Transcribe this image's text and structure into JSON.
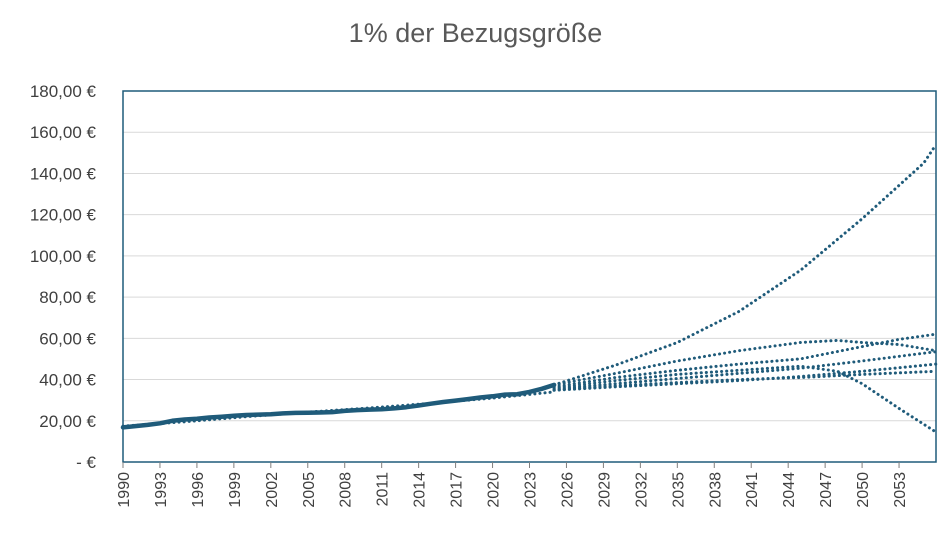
{
  "chart_data": {
    "type": "line",
    "title": "1% der Bezugsgröße",
    "xlabel": "",
    "ylabel": "",
    "ylim": [
      0,
      180
    ],
    "xlim": [
      1990,
      2056
    ],
    "y_ticks": [
      0,
      20,
      40,
      60,
      80,
      100,
      120,
      140,
      160,
      180
    ],
    "y_tick_labels": [
      "-  €",
      "20,00 €",
      "40,00 €",
      "60,00 €",
      "80,00 €",
      "100,00 €",
      "120,00 €",
      "140,00 €",
      "160,00 €",
      "180,00 €"
    ],
    "x_tick_labels": [
      "1990",
      "1993",
      "1996",
      "1999",
      "2002",
      "2005",
      "2008",
      "2011",
      "2014",
      "2017",
      "2020",
      "2023",
      "2026",
      "2029",
      "2032",
      "2035",
      "2038",
      "2041",
      "2044",
      "2047",
      "2050",
      "2053"
    ],
    "grid": true,
    "legend": "none",
    "colors": {
      "series": "#1f5b7a",
      "grid": "#d9d9d9",
      "frame": "#1f5b7a"
    },
    "series": [
      {
        "style": "solid",
        "x": [
          1990,
          1991,
          1992,
          1993,
          1994,
          1995,
          1996,
          1997,
          1998,
          1999,
          2000,
          2001,
          2002,
          2003,
          2004,
          2005,
          2006,
          2007,
          2008,
          2009,
          2010,
          2011,
          2012,
          2013,
          2014,
          2015,
          2016,
          2017,
          2018,
          2019,
          2020,
          2021,
          2022,
          2023,
          2024,
          2025
        ],
        "y": [
          16.8,
          17.4,
          18.0,
          18.8,
          20.0,
          20.6,
          21.0,
          21.6,
          22.0,
          22.4,
          22.8,
          23.0,
          23.2,
          23.6,
          23.8,
          23.9,
          24.0,
          24.2,
          24.8,
          25.2,
          25.4,
          25.6,
          26.0,
          26.6,
          27.4,
          28.3,
          29.1,
          29.8,
          30.5,
          31.3,
          31.9,
          32.7,
          32.9,
          34.0,
          35.5,
          37.4
        ]
      },
      {
        "style": "dotted",
        "x": [
          1990,
          1995,
          2000,
          2005,
          2010,
          2015,
          2020,
          2025
        ],
        "y": [
          17.4,
          19.5,
          22.0,
          24.2,
          26.2,
          28.5,
          31.0,
          34.0
        ]
      },
      {
        "style": "dotted",
        "x": [
          2025,
          2030,
          2035,
          2040,
          2045,
          2050,
          2055,
          2056
        ],
        "y": [
          37.4,
          47.0,
          58.0,
          73.0,
          93.0,
          118.0,
          145.0,
          154.0
        ]
      },
      {
        "style": "dotted",
        "x": [
          2025,
          2030,
          2035,
          2040,
          2045,
          2048,
          2050,
          2053,
          2056
        ],
        "y": [
          37.4,
          43.0,
          49.0,
          54.0,
          58.0,
          59.0,
          58.0,
          57.0,
          54.0
        ]
      },
      {
        "style": "dotted",
        "x": [
          2025,
          2030,
          2035,
          2040,
          2045,
          2050,
          2053,
          2056
        ],
        "y": [
          36.5,
          41.0,
          44.5,
          47.5,
          50.0,
          56.0,
          59.5,
          62.0
        ]
      },
      {
        "style": "dotted",
        "x": [
          2025,
          2030,
          2035,
          2040,
          2045,
          2048,
          2050,
          2053,
          2056
        ],
        "y": [
          36.0,
          39.5,
          42.5,
          44.5,
          46.5,
          44.0,
          38.0,
          26.0,
          14.5
        ]
      },
      {
        "style": "dotted",
        "x": [
          2025,
          2030,
          2035,
          2040,
          2045,
          2050,
          2056
        ],
        "y": [
          35.5,
          38.0,
          40.5,
          43.0,
          45.5,
          49.0,
          53.5
        ]
      },
      {
        "style": "dotted",
        "x": [
          2025,
          2030,
          2035,
          2040,
          2045,
          2050,
          2056
        ],
        "y": [
          35.0,
          37.0,
          38.5,
          40.0,
          41.0,
          42.5,
          44.0
        ]
      },
      {
        "style": "dotted",
        "x": [
          2025,
          2030,
          2035,
          2040,
          2045,
          2050,
          2056
        ],
        "y": [
          34.8,
          36.5,
          38.0,
          39.5,
          41.5,
          44.0,
          47.5
        ]
      }
    ]
  }
}
